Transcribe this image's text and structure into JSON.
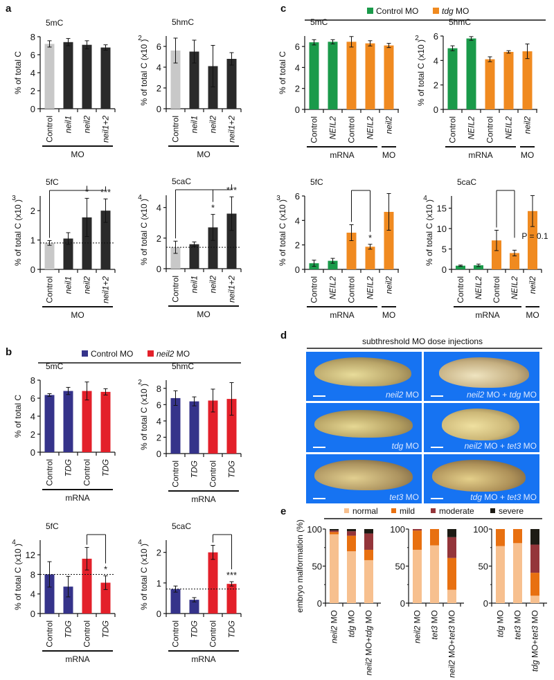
{
  "panel_letters": {
    "a": "a",
    "b": "b",
    "c": "c",
    "d": "d",
    "e": "e"
  },
  "colors": {
    "control_grey": "#c8c8c8",
    "dark_bar": "#2a2a2a",
    "blue": "#35338a",
    "red": "#e3202a",
    "green": "#1a9a4a",
    "orange": "#f08a20",
    "normal": "#f7c08f",
    "mild": "#e87010",
    "moderate": "#94353a",
    "severe": "#1d1b14",
    "photo_bg": "#1673f2"
  },
  "legends": {
    "b": [
      {
        "label": "Control MO",
        "color": "#35338a",
        "italic_part": ""
      },
      {
        "label": " MO",
        "color": "#e3202a",
        "italic_part": "neil2"
      }
    ],
    "c": [
      {
        "label": "Control MO",
        "color": "#1a9a4a",
        "italic_part": ""
      },
      {
        "label": " MO",
        "color": "#f08a20",
        "italic_part": "tdg"
      }
    ],
    "e": [
      {
        "label": "normal",
        "color": "#f7c08f"
      },
      {
        "label": "mild",
        "color": "#e87010"
      },
      {
        "label": "moderate",
        "color": "#94353a"
      },
      {
        "label": "severe",
        "color": "#1d1b14"
      }
    ]
  },
  "photos": {
    "title": "subthreshold MO dose injections",
    "items": [
      {
        "italic1": "neil2",
        "rest1": " MO",
        "italic2": "",
        "rest2": ""
      },
      {
        "italic1": "neil2",
        "rest1": " MO + ",
        "italic2": "tdg",
        "rest2": " MO"
      },
      {
        "italic1": "tdg",
        "rest1": " MO",
        "italic2": "",
        "rest2": ""
      },
      {
        "italic1": "neil2",
        "rest1": " MO + ",
        "italic2": "tet3",
        "rest2": " MO"
      },
      {
        "italic1": "tet3",
        "rest1": " MO",
        "italic2": "",
        "rest2": ""
      },
      {
        "italic1": "tdg",
        "rest1": " MO + ",
        "italic2": "tet3",
        "rest2": " MO"
      }
    ]
  },
  "chart_data": [
    {
      "id": "a1",
      "type": "bar",
      "title": "5mC",
      "ylabel": "% of total C",
      "exp": "",
      "ylim": [
        0,
        8
      ],
      "yticks": [
        0,
        2,
        4,
        6,
        8
      ],
      "categories": [
        "Control",
        "neil1",
        "neil2",
        "neil1+2"
      ],
      "italic": [
        false,
        true,
        true,
        true
      ],
      "values": [
        7.2,
        7.4,
        7.1,
        6.8
      ],
      "errors": [
        0.35,
        0.4,
        0.45,
        0.3
      ],
      "bar_colors": [
        "control_grey",
        "dark_bar",
        "dark_bar",
        "dark_bar"
      ],
      "groups": [
        {
          "label": "MO",
          "from": 0,
          "to": 3
        }
      ]
    },
    {
      "id": "a2",
      "type": "bar",
      "title": "5hmC",
      "ylabel": "% of total C (x10",
      "exp": "2",
      "ylim": [
        0,
        7
      ],
      "yticks": [
        0,
        2,
        4,
        6
      ],
      "categories": [
        "Control",
        "neil1",
        "neil2",
        "neil1+2"
      ],
      "italic": [
        false,
        true,
        true,
        true
      ],
      "values": [
        5.6,
        5.5,
        4.1,
        4.8
      ],
      "errors": [
        1.2,
        1.1,
        2.0,
        0.6
      ],
      "bar_colors": [
        "control_grey",
        "dark_bar",
        "dark_bar",
        "dark_bar"
      ],
      "groups": [
        {
          "label": "MO",
          "from": 0,
          "to": 3
        }
      ]
    },
    {
      "id": "a3",
      "type": "bar",
      "title": "5fC",
      "ylabel": "% of total C (x10",
      "exp": "3",
      "ylim": [
        0,
        2.5
      ],
      "yticks": [
        0,
        1,
        2
      ],
      "categories": [
        "Control",
        "neil1",
        "neil2",
        "neil1+2"
      ],
      "italic": [
        false,
        true,
        true,
        true
      ],
      "values": [
        0.9,
        1.05,
        1.77,
        2.0
      ],
      "errors": [
        0.08,
        0.2,
        0.65,
        0.4
      ],
      "bar_colors": [
        "control_grey",
        "dark_bar",
        "dark_bar",
        "dark_bar"
      ],
      "baseline": 0.9,
      "stars": [
        "",
        "",
        "*",
        "***"
      ],
      "bracket": {
        "from": 0,
        "to": [
          2,
          3
        ]
      },
      "groups": [
        {
          "label": "MO",
          "from": 0,
          "to": 3
        }
      ]
    },
    {
      "id": "a4",
      "type": "bar",
      "title": "5caC",
      "ylabel": "% of total C (x10",
      "exp": "4",
      "ylim": [
        0,
        4.8
      ],
      "yticks": [
        0,
        2,
        4
      ],
      "categories": [
        "Control",
        "neil1",
        "neil2",
        "neil1+2"
      ],
      "italic": [
        false,
        true,
        true,
        true
      ],
      "values": [
        1.4,
        1.6,
        2.7,
        3.6
      ],
      "errors": [
        0.4,
        0.15,
        0.85,
        1.1
      ],
      "bar_colors": [
        "control_grey",
        "dark_bar",
        "dark_bar",
        "dark_bar"
      ],
      "baseline": 1.4,
      "stars": [
        "",
        "",
        "*",
        "***"
      ],
      "bracket": {
        "from": 0,
        "to": [
          2,
          3
        ]
      },
      "groups": [
        {
          "label": "MO",
          "from": 0,
          "to": 3
        }
      ]
    },
    {
      "id": "b1",
      "type": "bar",
      "title": "5mC",
      "ylabel": "% of total C",
      "exp": "",
      "ylim": [
        0,
        8
      ],
      "yticks": [
        0,
        2,
        4,
        6,
        8
      ],
      "categories": [
        "Control",
        "TDG",
        "Control",
        "TDG"
      ],
      "italic": [
        false,
        true,
        false,
        true
      ],
      "values": [
        6.35,
        6.8,
        6.8,
        6.7
      ],
      "errors": [
        0.15,
        0.4,
        1.0,
        0.35
      ],
      "bar_colors": [
        "blue",
        "blue",
        "red",
        "red"
      ],
      "groups": [
        {
          "label": "mRNA",
          "from": 0,
          "to": 3
        }
      ]
    },
    {
      "id": "b2",
      "type": "bar",
      "title": "5hmC",
      "ylabel": "% of total C (x10",
      "exp": "2",
      "ylim": [
        0,
        9
      ],
      "yticks": [
        0,
        2,
        4,
        6,
        8
      ],
      "categories": [
        "Control",
        "TDG",
        "Control",
        "TDG"
      ],
      "italic": [
        false,
        true,
        false,
        true
      ],
      "values": [
        6.8,
        6.4,
        6.5,
        6.7
      ],
      "errors": [
        0.9,
        0.55,
        1.4,
        2.0
      ],
      "bar_colors": [
        "blue",
        "blue",
        "red",
        "red"
      ],
      "groups": [
        {
          "label": "mRNA",
          "from": 0,
          "to": 3
        }
      ]
    },
    {
      "id": "b3",
      "type": "bar",
      "title": "5fC",
      "ylabel": "% of total C (x10",
      "exp": "4",
      "ylim": [
        0,
        15
      ],
      "yticks": [
        0,
        4,
        8,
        12
      ],
      "categories": [
        "Control",
        "TDG",
        "Control",
        "TDG"
      ],
      "italic": [
        false,
        true,
        false,
        true
      ],
      "values": [
        8.0,
        5.5,
        11.2,
        6.3
      ],
      "errors": [
        2.6,
        2.1,
        2.3,
        1.4
      ],
      "bar_colors": [
        "blue",
        "blue",
        "red",
        "red"
      ],
      "baseline": 8.0,
      "stars": [
        "",
        "",
        "",
        "*"
      ],
      "bracket": {
        "from": 2,
        "to": [
          3
        ]
      },
      "groups": [
        {
          "label": "mRNA",
          "from": 0,
          "to": 3
        }
      ]
    },
    {
      "id": "b4",
      "type": "bar",
      "title": "5caC",
      "ylabel": "% of total C (x10",
      "exp": "4",
      "ylim": [
        0,
        2.4
      ],
      "yticks": [
        0,
        1,
        2
      ],
      "categories": [
        "Control",
        "TDG",
        "Control",
        "TDG"
      ],
      "italic": [
        false,
        true,
        false,
        true
      ],
      "values": [
        0.8,
        0.45,
        2.0,
        0.97
      ],
      "errors": [
        0.1,
        0.07,
        0.23,
        0.07
      ],
      "bar_colors": [
        "blue",
        "blue",
        "red",
        "red"
      ],
      "baseline": 0.8,
      "stars": [
        "",
        "",
        "",
        "***"
      ],
      "bracket": {
        "from": 2,
        "to": [
          3
        ]
      },
      "groups": [
        {
          "label": "mRNA",
          "from": 0,
          "to": 3
        }
      ]
    },
    {
      "id": "c1",
      "type": "bar",
      "title": "5mC",
      "ylabel": "% of total C",
      "exp": "",
      "ylim": [
        0,
        7
      ],
      "yticks": [
        0,
        2,
        4,
        6
      ],
      "categories": [
        "Control",
        "NEIL2",
        "Control",
        "NEIL2",
        "neil2"
      ],
      "italic": [
        false,
        true,
        false,
        true,
        true
      ],
      "values": [
        6.4,
        6.45,
        6.45,
        6.3,
        6.1
      ],
      "errors": [
        0.25,
        0.2,
        0.5,
        0.25,
        0.2
      ],
      "bar_colors": [
        "green",
        "green",
        "orange",
        "orange",
        "orange"
      ],
      "groups": [
        {
          "label": "mRNA",
          "from": 0,
          "to": 3
        },
        {
          "label": "MO",
          "from": 4,
          "to": 4
        }
      ]
    },
    {
      "id": "c2",
      "type": "bar",
      "title": "5hmC",
      "ylabel": "% of total C (x10",
      "exp": "2",
      "ylim": [
        0,
        6
      ],
      "yticks": [
        0,
        2,
        4,
        6
      ],
      "categories": [
        "Control",
        "NEIL2",
        "Control",
        "NEIL2",
        "neil2"
      ],
      "italic": [
        false,
        true,
        false,
        true,
        true
      ],
      "values": [
        5.0,
        5.8,
        4.1,
        4.7,
        4.75
      ],
      "errors": [
        0.2,
        0.15,
        0.2,
        0.1,
        0.6
      ],
      "bar_colors": [
        "green",
        "green",
        "orange",
        "orange",
        "orange"
      ],
      "groups": [
        {
          "label": "mRNA",
          "from": 0,
          "to": 3
        },
        {
          "label": "MO",
          "from": 4,
          "to": 4
        }
      ]
    },
    {
      "id": "c3",
      "type": "bar",
      "title": "5fC",
      "ylabel": "% of total C (x10",
      "exp": "3",
      "ylim": [
        0,
        6
      ],
      "yticks": [
        0,
        2,
        4,
        6
      ],
      "categories": [
        "Control",
        "NEIL2",
        "Control",
        "NEIL2",
        "neil2"
      ],
      "italic": [
        false,
        true,
        false,
        true,
        true
      ],
      "values": [
        0.5,
        0.7,
        3.0,
        1.85,
        4.7
      ],
      "errors": [
        0.25,
        0.2,
        0.65,
        0.2,
        1.5
      ],
      "bar_colors": [
        "green",
        "green",
        "orange",
        "orange",
        "orange"
      ],
      "stars": [
        "",
        "",
        "",
        "*",
        ""
      ],
      "bracket": {
        "from": 2,
        "to": [
          3
        ]
      },
      "groups": [
        {
          "label": "mRNA",
          "from": 0,
          "to": 3
        },
        {
          "label": "MO",
          "from": 4,
          "to": 4
        }
      ]
    },
    {
      "id": "c4",
      "type": "bar",
      "title": "5caC",
      "ylabel": "% of total C (x10",
      "exp": "4",
      "ylim": [
        0,
        18
      ],
      "yticks": [
        0,
        5,
        10,
        15
      ],
      "categories": [
        "Control",
        "NEIL2",
        "Control",
        "NEIL2",
        "neil2"
      ],
      "italic": [
        false,
        true,
        false,
        true,
        true
      ],
      "values": [
        0.9,
        1.0,
        7.1,
        4.0,
        14.3
      ],
      "errors": [
        0.15,
        0.3,
        2.5,
        0.7,
        3.8
      ],
      "bar_colors": [
        "green",
        "green",
        "orange",
        "orange",
        "orange"
      ],
      "pnote": "P = 0.1",
      "bracket": {
        "from": 2,
        "to": [
          3
        ]
      },
      "groups": [
        {
          "label": "mRNA",
          "from": 0,
          "to": 3
        },
        {
          "label": "MO",
          "from": 4,
          "to": 4
        }
      ]
    },
    {
      "id": "e",
      "type": "bar",
      "stacked": true,
      "title": "",
      "ylabel": "embryo malformation (%)",
      "ylim": [
        0,
        100
      ],
      "yticks": [
        0,
        50,
        100
      ],
      "series_names": [
        "normal",
        "mild",
        "moderate",
        "severe"
      ],
      "subplots": [
        {
          "categories": [
            [
              "neil2",
              " MO"
            ],
            [
              "tdg",
              " MO"
            ],
            [
              "neil2",
              " MO+",
              "tdg",
              " MO"
            ]
          ],
          "values": [
            [
              93,
              3,
              2,
              2
            ],
            [
              70,
              21,
              6,
              3
            ],
            [
              58,
              14,
              22,
              6
            ]
          ]
        },
        {
          "categories": [
            [
              "neil2",
              " MO"
            ],
            [
              "tet3",
              " MO"
            ],
            [
              "neil2",
              " MO+",
              "tet3",
              " MO"
            ]
          ],
          "values": [
            [
              72,
              26,
              2,
              0
            ],
            [
              78,
              22,
              0,
              0
            ],
            [
              18,
              43,
              28,
              11
            ]
          ]
        },
        {
          "categories": [
            [
              "tdg",
              " MO"
            ],
            [
              "tet3",
              " MO"
            ],
            [
              "tdg",
              " MO+",
              "tet3",
              " MO"
            ]
          ],
          "values": [
            [
              77,
              23,
              0,
              0
            ],
            [
              81,
              19,
              0,
              0
            ],
            [
              10,
              31,
              38,
              21
            ]
          ]
        }
      ]
    }
  ]
}
